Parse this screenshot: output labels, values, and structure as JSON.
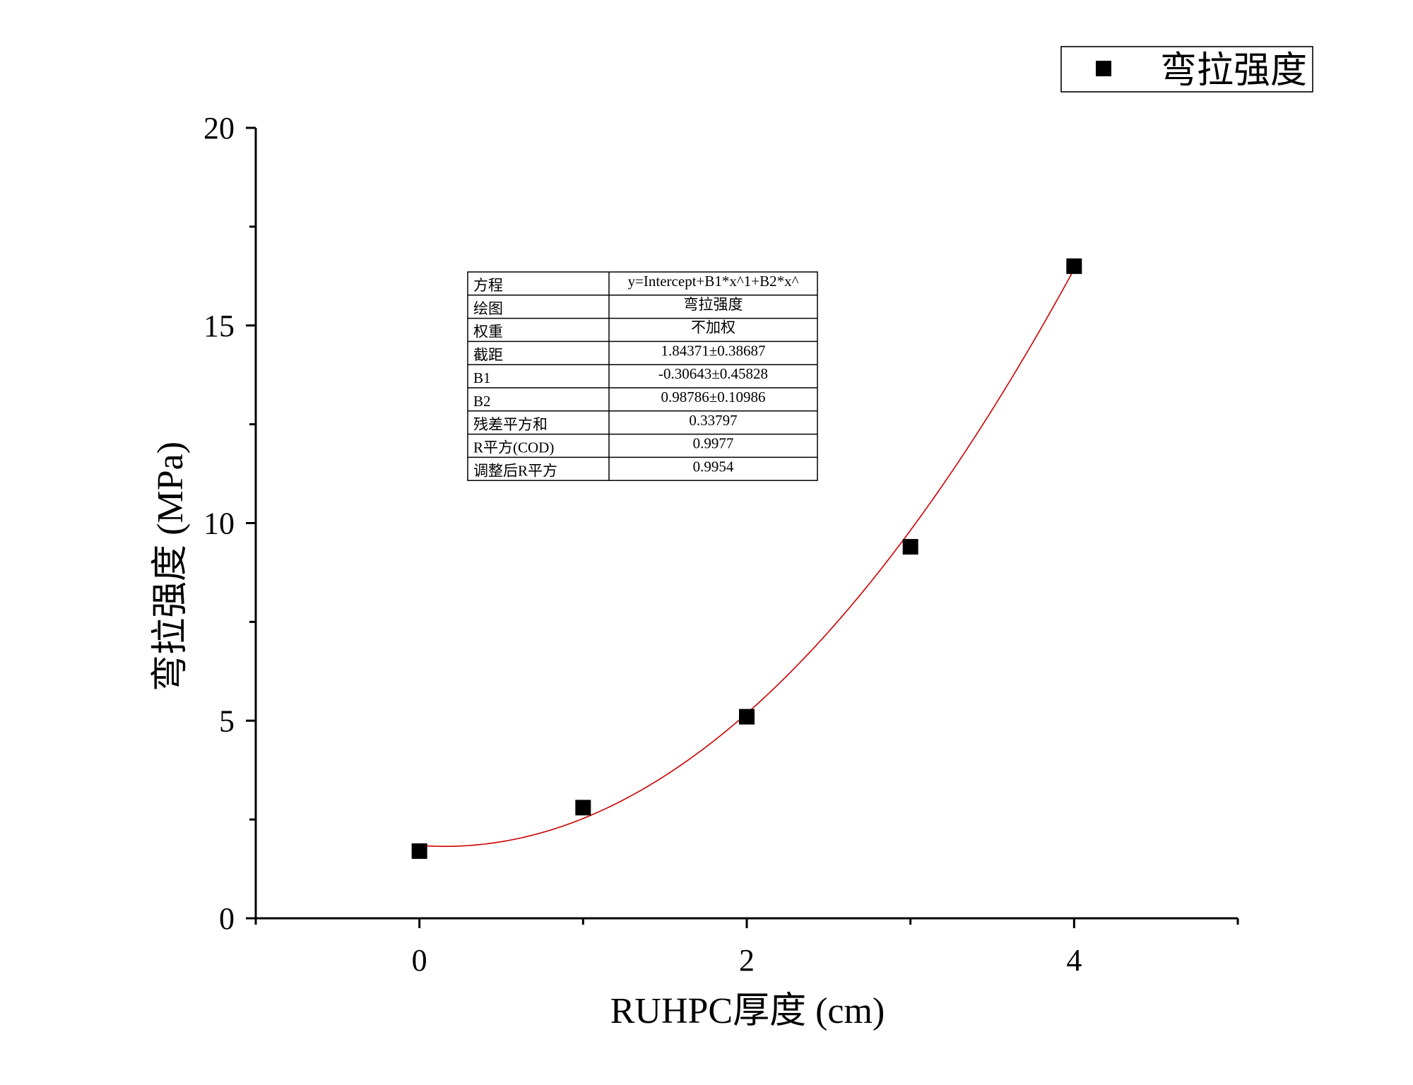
{
  "chart_data": {
    "type": "scatter",
    "title": "",
    "xlabel": "RUHPC厚度 (cm)",
    "ylabel": "弯拉强度 (MPa)",
    "xlim": [
      -1,
      5
    ],
    "ylim": [
      0,
      20
    ],
    "x_ticks": [
      0,
      2,
      4
    ],
    "x_tick_labels": [
      "0",
      "2",
      "4"
    ],
    "x_minor_ticks": [
      -1,
      1,
      3,
      5
    ],
    "y_ticks": [
      0,
      5,
      10,
      15,
      20
    ],
    "y_tick_labels": [
      "0",
      "5",
      "10",
      "15",
      "20"
    ],
    "y_minor_ticks": [
      2.5,
      7.5,
      12.5,
      17.5
    ],
    "grid": false,
    "legend_position": "top-right",
    "series": [
      {
        "name": "弯拉强度",
        "marker": "square",
        "color": "#000000",
        "x": [
          0,
          1,
          2,
          3,
          4
        ],
        "y": [
          1.7,
          2.8,
          5.1,
          9.4,
          16.5
        ]
      }
    ],
    "fit": {
      "type": "polynomial",
      "color": "#cc0000",
      "x_range": [
        0,
        4
      ],
      "intercept": 1.84371,
      "b1": -0.30643,
      "b2": 0.98786
    },
    "fit_table": {
      "rows": [
        {
          "label": "方程",
          "value": "y=Intercept+B1*x^1+B2*x^"
        },
        {
          "label": "绘图",
          "value": "弯拉强度"
        },
        {
          "label": "权重",
          "value": "不加权"
        },
        {
          "label": "截距",
          "value": "1.84371±0.38687"
        },
        {
          "label": "B1",
          "value": "-0.30643±0.45828"
        },
        {
          "label": "B2",
          "value": "0.98786±0.10986"
        },
        {
          "label": "残差平方和",
          "value": "0.33797"
        },
        {
          "label": "R平方(COD)",
          "value": "0.9977"
        },
        {
          "label": "调整后R平方",
          "value": "0.9954"
        }
      ]
    }
  }
}
